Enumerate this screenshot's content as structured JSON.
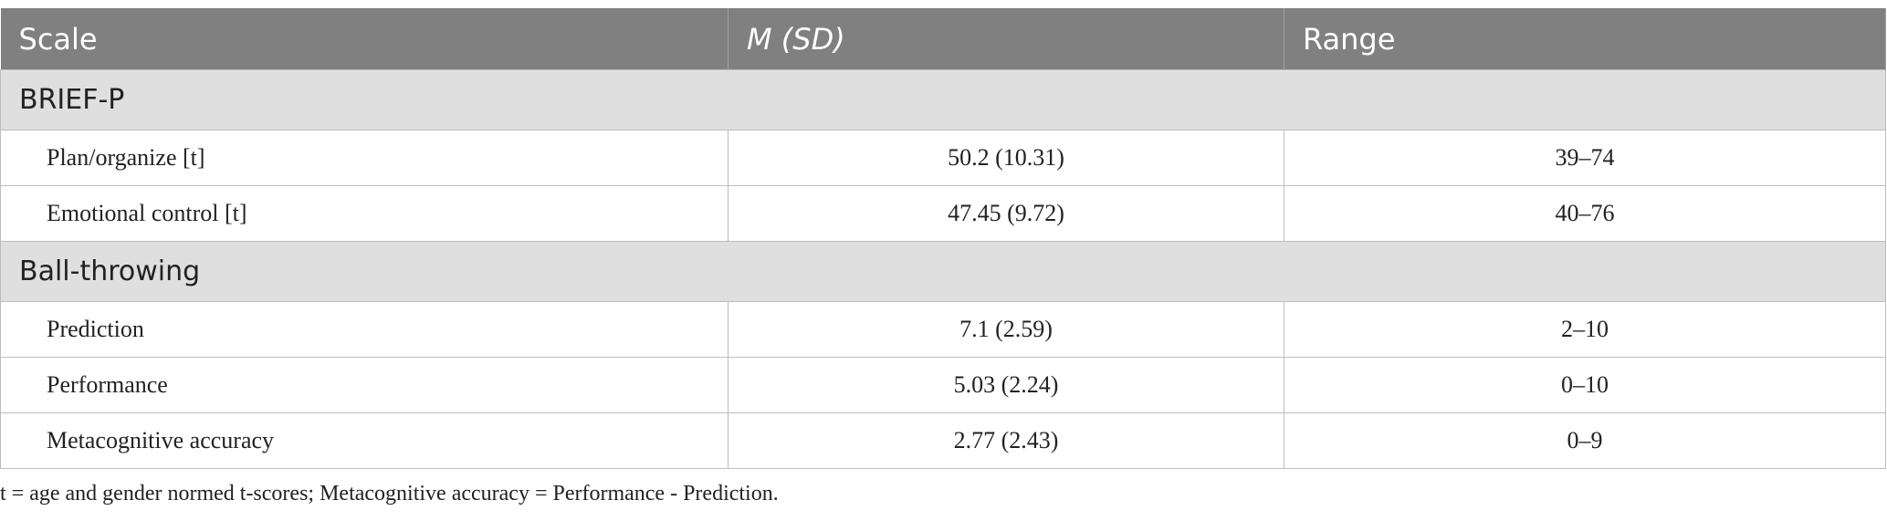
{
  "table": {
    "columns": [
      "Scale",
      "M (SD)",
      "Range"
    ],
    "sections": [
      {
        "title": "BRIEF-P",
        "rows": [
          [
            "Plan/organize [t]",
            "50.2 (10.31)",
            "39–74"
          ],
          [
            "Emotional control [t]",
            "47.45 (9.72)",
            "40–76"
          ]
        ]
      },
      {
        "title": "Ball-throwing",
        "rows": [
          [
            "Prediction",
            "7.1 (2.59)",
            "2–10"
          ],
          [
            "Performance",
            "5.03 (2.24)",
            "0–10"
          ],
          [
            "Metacognitive accuracy",
            "2.77 (2.43)",
            "0–9"
          ]
        ]
      }
    ],
    "footnote": "t = age and gender normed t-scores; Metacognitive accuracy = Performance - Prediction."
  }
}
